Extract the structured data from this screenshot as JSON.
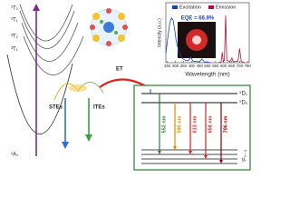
{
  "labels": {
    "states": [
      "¹T₂",
      "¹T₁",
      "³T₂",
      "³T₁",
      "¹A₁"
    ],
    "stes": "STEs",
    "ites": "ITEs",
    "et": "ET"
  },
  "inset": {
    "type": "line",
    "x_label": "Wavelength (nm)",
    "y_label": "Intensity (a.u.)",
    "annotation": "EQE = 66.8%",
    "xlim": [
      240,
      760
    ],
    "xticks": [
      250,
      300,
      350,
      400,
      450,
      500,
      550,
      600,
      650,
      700,
      750
    ],
    "ylim": [
      0,
      1
    ],
    "series": [
      {
        "name": "Excitation",
        "color": "#1f3fbf",
        "x": [
          240,
          255,
          265,
          275,
          285,
          295,
          305,
          320,
          340,
          360,
          380,
          395,
          410,
          450,
          465,
          480,
          520
        ],
        "values": [
          0.2,
          0.6,
          0.85,
          0.95,
          0.9,
          0.7,
          0.45,
          0.25,
          0.1,
          0.05,
          0.04,
          0.12,
          0.03,
          0.02,
          0.08,
          0.02,
          0.0
        ]
      },
      {
        "name": "Emission",
        "color": "#b0103a",
        "x": [
          570,
          585,
          592,
          598,
          605,
          613,
          620,
          640,
          652,
          660,
          690,
          700,
          710,
          730
        ],
        "values": [
          0.0,
          0.02,
          0.22,
          0.03,
          0.05,
          1.0,
          0.05,
          0.02,
          0.1,
          0.02,
          0.03,
          0.3,
          0.03,
          0.0
        ]
      }
    ]
  },
  "levels": {
    "upper": [
      "⁵D₁",
      "⁵D₀"
    ],
    "lower": "⁷F₀₋₄",
    "transitions": [
      "552 nm",
      "595 nm",
      "613 nm",
      "658 nm",
      "706 nm"
    ]
  }
}
